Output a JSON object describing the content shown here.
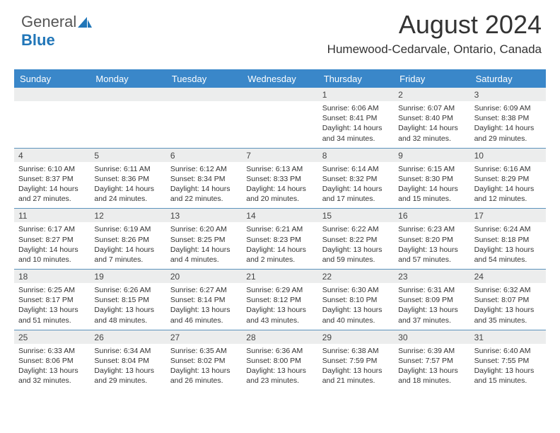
{
  "brand": {
    "part1": "General",
    "part2": "Blue"
  },
  "colors": {
    "header_bg": "#3a87c9",
    "daynum_bg": "#eceded",
    "row_border": "#5c93bc",
    "brand_blue": "#2176b8"
  },
  "title": "August 2024",
  "location": "Humewood-Cedarvale, Ontario, Canada",
  "day_headers": [
    "Sunday",
    "Monday",
    "Tuesday",
    "Wednesday",
    "Thursday",
    "Friday",
    "Saturday"
  ],
  "weeks": [
    [
      null,
      null,
      null,
      null,
      {
        "n": "1",
        "sunrise": "6:06 AM",
        "sunset": "8:41 PM",
        "dl1": "Daylight: 14 hours",
        "dl2": "and 34 minutes."
      },
      {
        "n": "2",
        "sunrise": "6:07 AM",
        "sunset": "8:40 PM",
        "dl1": "Daylight: 14 hours",
        "dl2": "and 32 minutes."
      },
      {
        "n": "3",
        "sunrise": "6:09 AM",
        "sunset": "8:38 PM",
        "dl1": "Daylight: 14 hours",
        "dl2": "and 29 minutes."
      }
    ],
    [
      {
        "n": "4",
        "sunrise": "6:10 AM",
        "sunset": "8:37 PM",
        "dl1": "Daylight: 14 hours",
        "dl2": "and 27 minutes."
      },
      {
        "n": "5",
        "sunrise": "6:11 AM",
        "sunset": "8:36 PM",
        "dl1": "Daylight: 14 hours",
        "dl2": "and 24 minutes."
      },
      {
        "n": "6",
        "sunrise": "6:12 AM",
        "sunset": "8:34 PM",
        "dl1": "Daylight: 14 hours",
        "dl2": "and 22 minutes."
      },
      {
        "n": "7",
        "sunrise": "6:13 AM",
        "sunset": "8:33 PM",
        "dl1": "Daylight: 14 hours",
        "dl2": "and 20 minutes."
      },
      {
        "n": "8",
        "sunrise": "6:14 AM",
        "sunset": "8:32 PM",
        "dl1": "Daylight: 14 hours",
        "dl2": "and 17 minutes."
      },
      {
        "n": "9",
        "sunrise": "6:15 AM",
        "sunset": "8:30 PM",
        "dl1": "Daylight: 14 hours",
        "dl2": "and 15 minutes."
      },
      {
        "n": "10",
        "sunrise": "6:16 AM",
        "sunset": "8:29 PM",
        "dl1": "Daylight: 14 hours",
        "dl2": "and 12 minutes."
      }
    ],
    [
      {
        "n": "11",
        "sunrise": "6:17 AM",
        "sunset": "8:27 PM",
        "dl1": "Daylight: 14 hours",
        "dl2": "and 10 minutes."
      },
      {
        "n": "12",
        "sunrise": "6:19 AM",
        "sunset": "8:26 PM",
        "dl1": "Daylight: 14 hours",
        "dl2": "and 7 minutes."
      },
      {
        "n": "13",
        "sunrise": "6:20 AM",
        "sunset": "8:25 PM",
        "dl1": "Daylight: 14 hours",
        "dl2": "and 4 minutes."
      },
      {
        "n": "14",
        "sunrise": "6:21 AM",
        "sunset": "8:23 PM",
        "dl1": "Daylight: 14 hours",
        "dl2": "and 2 minutes."
      },
      {
        "n": "15",
        "sunrise": "6:22 AM",
        "sunset": "8:22 PM",
        "dl1": "Daylight: 13 hours",
        "dl2": "and 59 minutes."
      },
      {
        "n": "16",
        "sunrise": "6:23 AM",
        "sunset": "8:20 PM",
        "dl1": "Daylight: 13 hours",
        "dl2": "and 57 minutes."
      },
      {
        "n": "17",
        "sunrise": "6:24 AM",
        "sunset": "8:18 PM",
        "dl1": "Daylight: 13 hours",
        "dl2": "and 54 minutes."
      }
    ],
    [
      {
        "n": "18",
        "sunrise": "6:25 AM",
        "sunset": "8:17 PM",
        "dl1": "Daylight: 13 hours",
        "dl2": "and 51 minutes."
      },
      {
        "n": "19",
        "sunrise": "6:26 AM",
        "sunset": "8:15 PM",
        "dl1": "Daylight: 13 hours",
        "dl2": "and 48 minutes."
      },
      {
        "n": "20",
        "sunrise": "6:27 AM",
        "sunset": "8:14 PM",
        "dl1": "Daylight: 13 hours",
        "dl2": "and 46 minutes."
      },
      {
        "n": "21",
        "sunrise": "6:29 AM",
        "sunset": "8:12 PM",
        "dl1": "Daylight: 13 hours",
        "dl2": "and 43 minutes."
      },
      {
        "n": "22",
        "sunrise": "6:30 AM",
        "sunset": "8:10 PM",
        "dl1": "Daylight: 13 hours",
        "dl2": "and 40 minutes."
      },
      {
        "n": "23",
        "sunrise": "6:31 AM",
        "sunset": "8:09 PM",
        "dl1": "Daylight: 13 hours",
        "dl2": "and 37 minutes."
      },
      {
        "n": "24",
        "sunrise": "6:32 AM",
        "sunset": "8:07 PM",
        "dl1": "Daylight: 13 hours",
        "dl2": "and 35 minutes."
      }
    ],
    [
      {
        "n": "25",
        "sunrise": "6:33 AM",
        "sunset": "8:06 PM",
        "dl1": "Daylight: 13 hours",
        "dl2": "and 32 minutes."
      },
      {
        "n": "26",
        "sunrise": "6:34 AM",
        "sunset": "8:04 PM",
        "dl1": "Daylight: 13 hours",
        "dl2": "and 29 minutes."
      },
      {
        "n": "27",
        "sunrise": "6:35 AM",
        "sunset": "8:02 PM",
        "dl1": "Daylight: 13 hours",
        "dl2": "and 26 minutes."
      },
      {
        "n": "28",
        "sunrise": "6:36 AM",
        "sunset": "8:00 PM",
        "dl1": "Daylight: 13 hours",
        "dl2": "and 23 minutes."
      },
      {
        "n": "29",
        "sunrise": "6:38 AM",
        "sunset": "7:59 PM",
        "dl1": "Daylight: 13 hours",
        "dl2": "and 21 minutes."
      },
      {
        "n": "30",
        "sunrise": "6:39 AM",
        "sunset": "7:57 PM",
        "dl1": "Daylight: 13 hours",
        "dl2": "and 18 minutes."
      },
      {
        "n": "31",
        "sunrise": "6:40 AM",
        "sunset": "7:55 PM",
        "dl1": "Daylight: 13 hours",
        "dl2": "and 15 minutes."
      }
    ]
  ]
}
